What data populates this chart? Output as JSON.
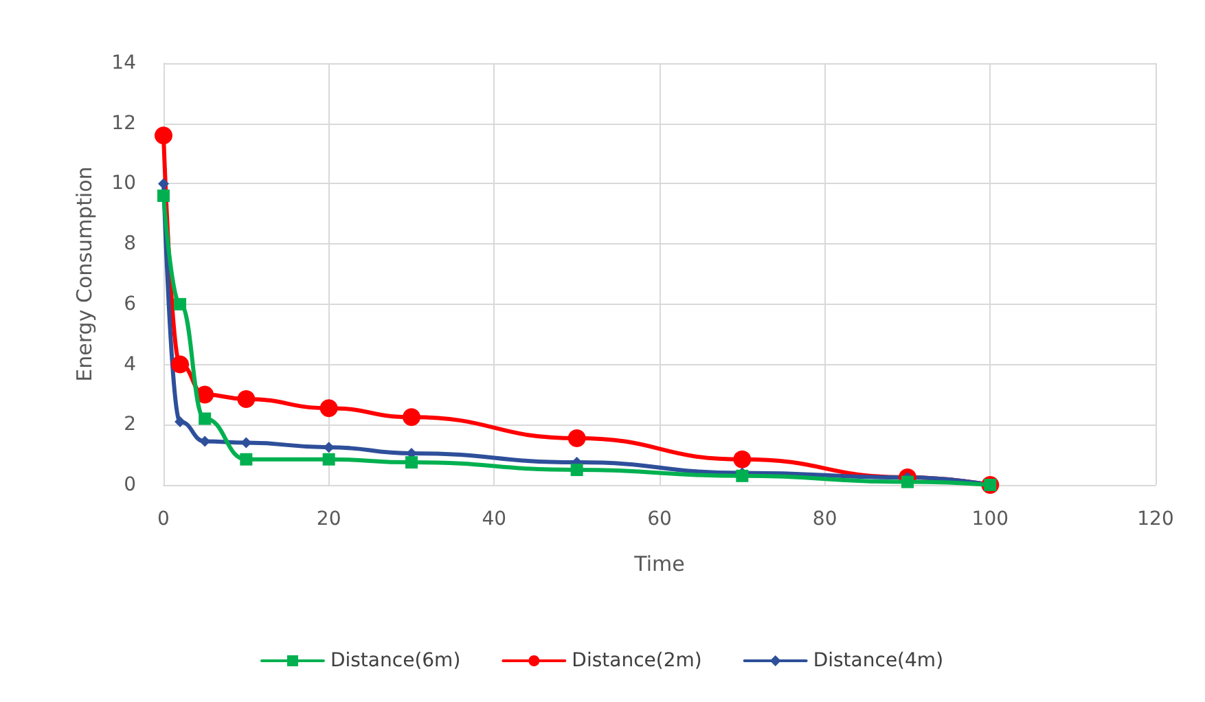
{
  "chart_data": {
    "type": "line",
    "xlabel": "Time",
    "ylabel": "Energy Consumption",
    "x": [
      0,
      2,
      5,
      10,
      20,
      30,
      50,
      70,
      90,
      100
    ],
    "xlim": [
      0,
      120
    ],
    "xticks": [
      0,
      20,
      40,
      60,
      80,
      100,
      120
    ],
    "ylim": [
      0,
      14
    ],
    "yticks": [
      0,
      2,
      4,
      6,
      8,
      10,
      12,
      14
    ],
    "grid": true,
    "legend": "bottom",
    "series": [
      {
        "name": "Distance(6m)",
        "color": "#00b050",
        "marker": "square",
        "values": [
          9.6,
          6.0,
          2.2,
          0.85,
          0.85,
          0.75,
          0.5,
          0.3,
          0.1,
          0
        ]
      },
      {
        "name": "Distance(2m)",
        "color": "#ff0000",
        "marker": "circle",
        "values": [
          11.6,
          4.0,
          3.0,
          2.85,
          2.55,
          2.25,
          1.55,
          0.85,
          0.25,
          0
        ]
      },
      {
        "name": "Distance(4m)",
        "color": "#2e4f9a",
        "marker": "diamond",
        "values": [
          10.0,
          2.1,
          1.45,
          1.4,
          1.25,
          1.05,
          0.75,
          0.4,
          0.25,
          0
        ]
      }
    ]
  }
}
